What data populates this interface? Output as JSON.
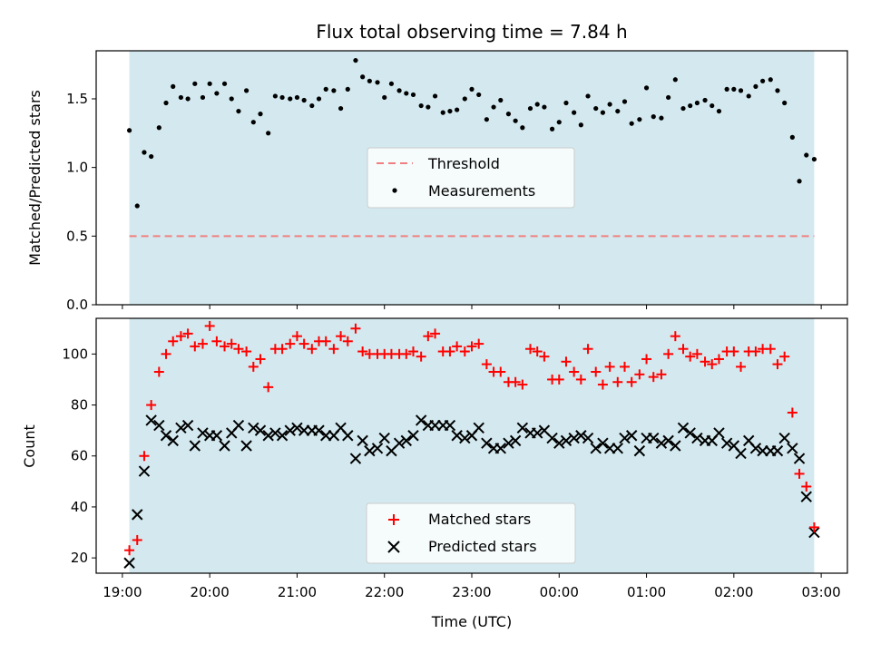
{
  "chart_data": [
    {
      "panel": "top",
      "type": "scatter",
      "title": "Flux total observing time = 7.84 h",
      "ylabel": "Matched/Predicted stars",
      "ylim": [
        0,
        1.85
      ],
      "yticks": [
        "0.0",
        "0.5",
        "1.0",
        "1.5"
      ],
      "ytick_values": [
        0,
        0.5,
        1.0,
        1.5
      ],
      "xlim_hours": [
        18.7,
        27.3
      ],
      "observing_window_hours": [
        19.08,
        26.92
      ],
      "observing_window_color": "#d3e9ef",
      "threshold": {
        "name": "Threshold",
        "value": 0.5,
        "color": "#f08080",
        "style": "dashed"
      },
      "legend": {
        "placement": "center",
        "entries": [
          "Threshold",
          "Measurements"
        ]
      },
      "series": [
        {
          "name": "Measurements",
          "marker": "dot",
          "color": "#000000",
          "x": [
            19.08,
            19.17,
            19.25,
            19.33,
            19.42,
            19.5,
            19.58,
            19.67,
            19.75,
            19.83,
            19.92,
            20.0,
            20.08,
            20.17,
            20.25,
            20.33,
            20.42,
            20.5,
            20.58,
            20.67,
            20.75,
            20.83,
            20.92,
            21.0,
            21.08,
            21.17,
            21.25,
            21.33,
            21.42,
            21.5,
            21.58,
            21.67,
            21.75,
            21.83,
            21.92,
            22.0,
            22.08,
            22.17,
            22.25,
            22.33,
            22.42,
            22.5,
            22.58,
            22.67,
            22.75,
            22.83,
            22.92,
            23.0,
            23.08,
            23.17,
            23.25,
            23.33,
            23.42,
            23.5,
            23.58,
            23.67,
            23.75,
            23.83,
            23.92,
            24.0,
            24.08,
            24.17,
            24.25,
            24.33,
            24.42,
            24.5,
            24.58,
            24.67,
            24.75,
            24.83,
            24.92,
            25.0,
            25.08,
            25.17,
            25.25,
            25.33,
            25.42,
            25.5,
            25.58,
            25.67,
            25.75,
            25.83,
            25.92,
            26.0,
            26.08,
            26.17,
            26.25,
            26.33,
            26.42,
            26.5,
            26.58,
            26.67,
            26.75,
            26.83,
            26.92
          ],
          "y": [
            1.27,
            0.72,
            1.11,
            1.08,
            1.29,
            1.47,
            1.59,
            1.51,
            1.5,
            1.61,
            1.51,
            1.61,
            1.54,
            1.61,
            1.5,
            1.41,
            1.56,
            1.33,
            1.39,
            1.25,
            1.52,
            1.51,
            1.5,
            1.51,
            1.49,
            1.45,
            1.5,
            1.57,
            1.56,
            1.43,
            1.57,
            1.78,
            1.66,
            1.63,
            1.62,
            1.51,
            1.61,
            1.56,
            1.54,
            1.53,
            1.45,
            1.44,
            1.52,
            1.4,
            1.41,
            1.42,
            1.5,
            1.57,
            1.53,
            1.35,
            1.44,
            1.49,
            1.39,
            1.34,
            1.29,
            1.43,
            1.46,
            1.44,
            1.28,
            1.33,
            1.47,
            1.4,
            1.31,
            1.52,
            1.43,
            1.4,
            1.46,
            1.41,
            1.48,
            1.32,
            1.35,
            1.58,
            1.37,
            1.36,
            1.51,
            1.64,
            1.43,
            1.45,
            1.47,
            1.49,
            1.45,
            1.41,
            1.57,
            1.57,
            1.56,
            1.52,
            1.59,
            1.63,
            1.64,
            1.56,
            1.47,
            1.22,
            0.9,
            1.09,
            1.06
          ]
        }
      ]
    },
    {
      "panel": "bottom",
      "type": "scatter",
      "xlabel": "Time (UTC)",
      "ylabel": "Count",
      "ylim": [
        14,
        114
      ],
      "yticks": [
        "20",
        "40",
        "60",
        "80",
        "100"
      ],
      "ytick_values": [
        20,
        40,
        60,
        80,
        100
      ],
      "xticks": [
        "19:00",
        "20:00",
        "21:00",
        "22:00",
        "23:00",
        "00:00",
        "01:00",
        "02:00",
        "03:00"
      ],
      "xtick_hours": [
        19,
        20,
        21,
        22,
        23,
        24,
        25,
        26,
        27
      ],
      "xlim_hours": [
        18.7,
        27.3
      ],
      "observing_window_hours": [
        19.08,
        26.92
      ],
      "observing_window_color": "#d3e9ef",
      "legend": {
        "placement": "lower center",
        "entries": [
          "Matched stars",
          "Predicted stars"
        ]
      },
      "x": [
        19.08,
        19.17,
        19.25,
        19.33,
        19.42,
        19.5,
        19.58,
        19.67,
        19.75,
        19.83,
        19.92,
        20.0,
        20.08,
        20.17,
        20.25,
        20.33,
        20.42,
        20.5,
        20.58,
        20.67,
        20.75,
        20.83,
        20.92,
        21.0,
        21.08,
        21.17,
        21.25,
        21.33,
        21.42,
        21.5,
        21.58,
        21.67,
        21.75,
        21.83,
        21.92,
        22.0,
        22.08,
        22.17,
        22.25,
        22.33,
        22.42,
        22.5,
        22.58,
        22.67,
        22.75,
        22.83,
        22.92,
        23.0,
        23.08,
        23.17,
        23.25,
        23.33,
        23.42,
        23.5,
        23.58,
        23.67,
        23.75,
        23.83,
        23.92,
        24.0,
        24.08,
        24.17,
        24.25,
        24.33,
        24.42,
        24.5,
        24.58,
        24.67,
        24.75,
        24.83,
        24.92,
        25.0,
        25.08,
        25.17,
        25.25,
        25.33,
        25.42,
        25.5,
        25.58,
        25.67,
        25.75,
        25.83,
        25.92,
        26.0,
        26.08,
        26.17,
        26.25,
        26.33,
        26.42,
        26.5,
        26.58,
        26.67,
        26.75,
        26.83,
        26.92
      ],
      "series": [
        {
          "name": "Matched stars",
          "marker": "plus",
          "color": "#ff0000",
          "values": [
            23,
            27,
            60,
            80,
            93,
            100,
            105,
            107,
            108,
            103,
            104,
            111,
            105,
            103,
            104,
            102,
            101,
            95,
            98,
            87,
            102,
            102,
            104,
            107,
            104,
            102,
            105,
            105,
            102,
            107,
            105,
            110,
            101,
            100,
            100,
            100,
            100,
            100,
            100,
            101,
            99,
            107,
            108,
            101,
            101,
            103,
            101,
            103,
            104,
            96,
            93,
            93,
            89,
            89,
            88,
            102,
            101,
            99,
            90,
            90,
            97,
            93,
            90,
            102,
            93,
            88,
            95,
            89,
            95,
            89,
            92,
            98,
            91,
            92,
            100,
            107,
            102,
            99,
            100,
            97,
            96,
            98,
            101,
            101,
            95,
            101,
            101,
            102,
            102,
            96,
            99,
            77,
            53,
            48,
            32
          ]
        },
        {
          "name": "Predicted stars",
          "marker": "x",
          "color": "#000000",
          "values": [
            18,
            37,
            54,
            74,
            72,
            68,
            66,
            71,
            72,
            64,
            69,
            68,
            68,
            64,
            69,
            72,
            64,
            71,
            70,
            68,
            69,
            68,
            70,
            71,
            70,
            70,
            70,
            68,
            68,
            71,
            68,
            59,
            66,
            62,
            63,
            67,
            62,
            65,
            66,
            68,
            74,
            72,
            72,
            72,
            72,
            68,
            67,
            68,
            71,
            65,
            63,
            63,
            65,
            66,
            71,
            69,
            69,
            70,
            67,
            65,
            66,
            67,
            68,
            67,
            63,
            65,
            63,
            63,
            67,
            68,
            62,
            67,
            67,
            65,
            66,
            64,
            71,
            69,
            67,
            66,
            66,
            69,
            65,
            64,
            61,
            66,
            63,
            62,
            62,
            62,
            67,
            63,
            59,
            44,
            30
          ]
        }
      ]
    }
  ]
}
